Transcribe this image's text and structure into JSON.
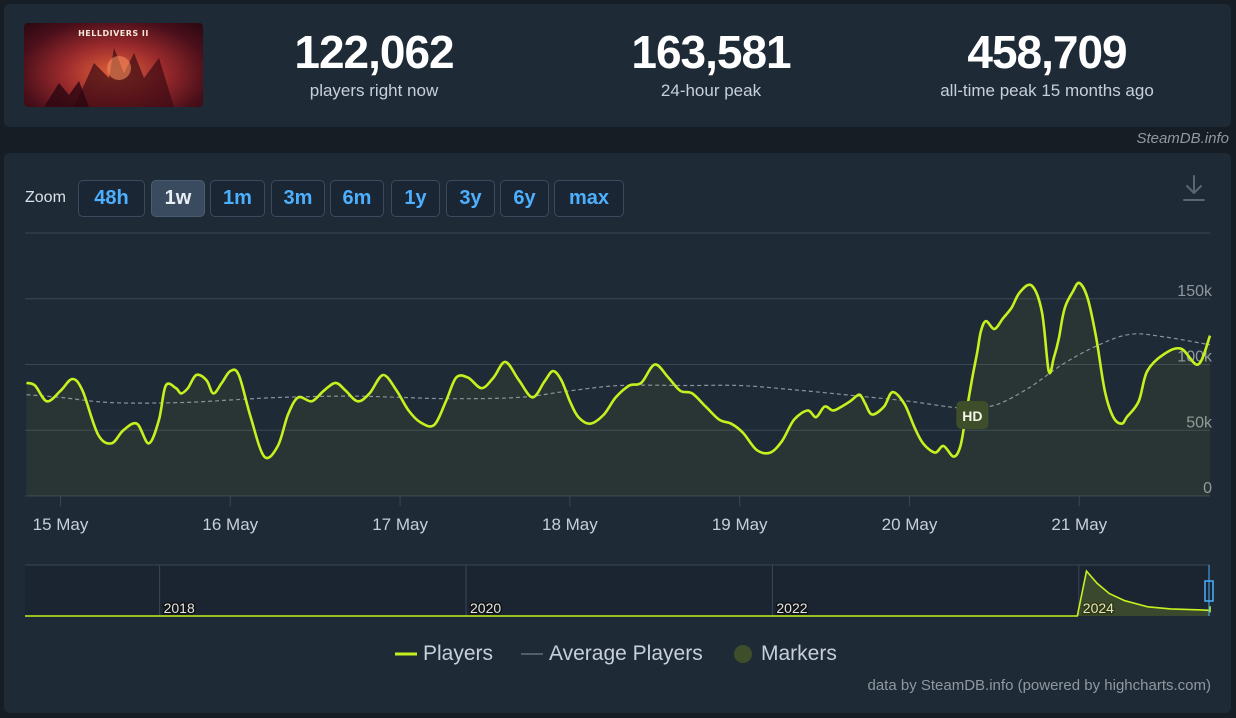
{
  "header": {
    "game_logo_text": "HELLDIVERS II",
    "stats": [
      {
        "value": "122,062",
        "label": "players right now"
      },
      {
        "value": "163,581",
        "label": "24-hour peak"
      },
      {
        "value": "458,709",
        "label": "all-time peak 15 months ago"
      }
    ]
  },
  "brand": "SteamDB.info",
  "toolbar": {
    "zoom_label": "Zoom",
    "zoom_buttons": [
      "48h",
      "1w",
      "1m",
      "3m",
      "6m",
      "1y",
      "3y",
      "6y",
      "max"
    ],
    "active_zoom": "1w",
    "download_icon": "download-icon"
  },
  "legend": {
    "players": "Players",
    "average": "Average Players",
    "markers": "Markers"
  },
  "credits": "data by SteamDB.info (powered by highcharts.com)",
  "colors": {
    "players": "#c6f01e",
    "average": "#8a939b",
    "marker": "#3f4e2a",
    "background": "#1f2a37"
  },
  "chart_data": [
    {
      "type": "line",
      "x_labels": [
        "15 May",
        "16 May",
        "17 May",
        "18 May",
        "19 May",
        "20 May",
        "21 May"
      ],
      "x_range_days": [
        -0.2,
        6.8
      ],
      "ylim": [
        0,
        200000
      ],
      "y_ticks": [
        0,
        50000,
        100000,
        150000
      ],
      "y_tick_labels": [
        "0",
        "50k",
        "100k",
        "150k"
      ],
      "grid": true,
      "legend_position": "bottom-center",
      "series": [
        {
          "name": "Players",
          "x": [
            -0.2,
            -0.15,
            -0.08,
            0,
            0.07,
            0.13,
            0.22,
            0.3,
            0.37,
            0.45,
            0.52,
            0.58,
            0.62,
            0.68,
            0.71,
            0.75,
            0.8,
            0.86,
            0.9,
            0.95,
            1.0,
            1.05,
            1.12,
            1.2,
            1.28,
            1.34,
            1.4,
            1.48,
            1.55,
            1.62,
            1.68,
            1.75,
            1.82,
            1.9,
            1.98,
            2.05,
            2.12,
            2.2,
            2.27,
            2.33,
            2.4,
            2.48,
            2.55,
            2.62,
            2.7,
            2.78,
            2.85,
            2.9,
            2.95,
            3.0,
            3.05,
            3.12,
            3.2,
            3.27,
            3.35,
            3.42,
            3.5,
            3.58,
            3.65,
            3.72,
            3.8,
            3.88,
            3.95,
            4.02,
            4.1,
            4.18,
            4.25,
            4.32,
            4.4,
            4.45,
            4.5,
            4.55,
            4.6,
            4.65,
            4.7,
            4.72,
            4.74,
            4.78,
            4.85,
            4.9,
            4.97,
            5.03,
            5.08,
            5.15,
            5.2,
            5.26,
            5.3,
            5.33,
            5.37,
            5.4,
            5.42,
            5.45,
            5.5,
            5.55,
            5.6,
            5.65,
            5.72,
            5.78,
            5.82,
            5.85,
            5.88,
            5.9,
            5.92,
            5.96,
            6.0,
            6.05,
            6.1,
            6.15,
            6.2,
            6.25,
            6.28,
            6.35,
            6.4,
            6.5,
            6.6,
            6.7,
            6.8
          ],
          "values": [
            86000,
            84000,
            72000,
            80000,
            89000,
            80000,
            47000,
            40000,
            50000,
            55000,
            40000,
            58000,
            84000,
            82000,
            78000,
            82000,
            92000,
            88000,
            78000,
            86000,
            95000,
            92000,
            60000,
            30000,
            38000,
            62000,
            75000,
            72000,
            80000,
            86000,
            80000,
            72000,
            78000,
            92000,
            80000,
            65000,
            56000,
            54000,
            72000,
            90000,
            90000,
            82000,
            90000,
            102000,
            88000,
            75000,
            87000,
            95000,
            88000,
            72000,
            60000,
            55000,
            62000,
            75000,
            84000,
            86000,
            100000,
            90000,
            80000,
            78000,
            68000,
            58000,
            55000,
            48000,
            35000,
            33000,
            42000,
            58000,
            65000,
            60000,
            68000,
            65000,
            68000,
            72000,
            77000,
            75000,
            70000,
            62000,
            68000,
            79000,
            70000,
            52000,
            40000,
            33000,
            38000,
            30000,
            38000,
            60000,
            90000,
            110000,
            125000,
            133000,
            127000,
            135000,
            143000,
            155000,
            160000,
            140000,
            95000,
            105000,
            120000,
            135000,
            145000,
            155000,
            162000,
            150000,
            120000,
            80000,
            60000,
            55000,
            60000,
            72000,
            95000,
            108000,
            112000,
            100000,
            122000
          ]
        },
        {
          "name": "Average Players",
          "x": [
            -0.2,
            0,
            0.3,
            0.7,
            1.0,
            1.3,
            1.7,
            2.0,
            2.3,
            2.7,
            3.0,
            3.3,
            3.7,
            4.0,
            4.3,
            4.7,
            5.0,
            5.3,
            5.5,
            5.7,
            5.9,
            6.1,
            6.3,
            6.5,
            6.8
          ],
          "values": [
            77000,
            75000,
            71000,
            71000,
            73000,
            75000,
            76000,
            75000,
            74000,
            75000,
            80000,
            84000,
            84000,
            84000,
            81000,
            76000,
            72000,
            67000,
            69000,
            82000,
            100000,
            114000,
            123000,
            121000,
            115000
          ]
        }
      ],
      "markers": [
        {
          "label": "HD",
          "x": 5.37
        }
      ]
    },
    {
      "type": "area",
      "role": "navigator",
      "x_labels": [
        "2018",
        "2020",
        "2022",
        "2024"
      ],
      "series": [
        {
          "name": "Players",
          "x": [
            2016.9,
            2017.6,
            2023.99,
            2024.05,
            2024.12,
            2024.2,
            2024.3,
            2024.45,
            2024.6,
            2024.8,
            2025.0,
            2025.2,
            2025.4,
            2025.6,
            2025.8,
            2025.97,
            2026.3,
            2026.5,
            2026.8,
            2027.0,
            2027.2,
            2027.3,
            2027.4
          ],
          "values": [
            0,
            0,
            0,
            440000,
            320000,
            220000,
            150000,
            90000,
            70000,
            60000,
            55000,
            50000,
            62000,
            45000,
            40000,
            65000,
            45000,
            35000,
            50000,
            75000,
            45000,
            40000,
            95000
          ]
        }
      ]
    }
  ]
}
